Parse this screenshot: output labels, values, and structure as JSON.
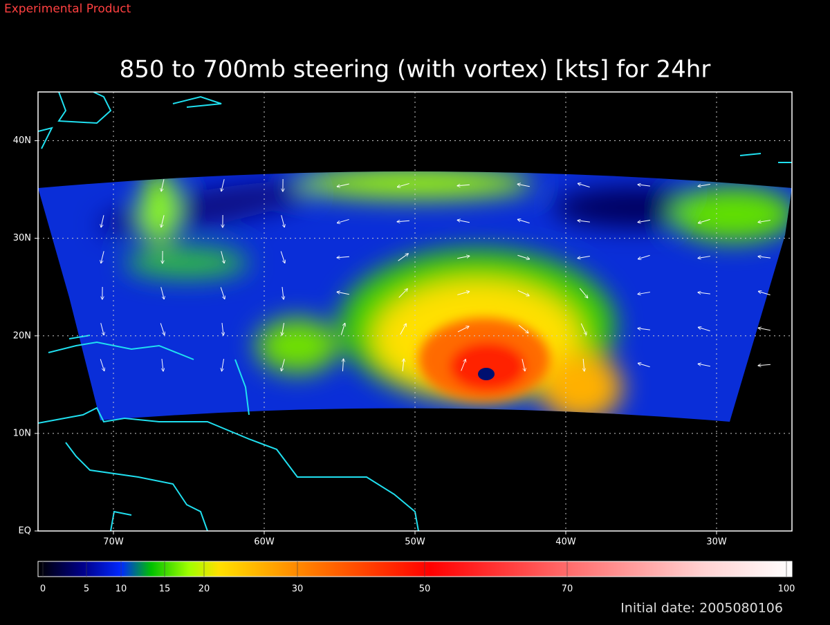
{
  "header": {
    "label": "Experimental Product"
  },
  "map": {
    "title": "850 to 700mb steering (with vortex) [kts] for 24hr",
    "xlim": [
      -75,
      -25
    ],
    "ylim": [
      0,
      45
    ],
    "xticks": [
      {
        "value": -70,
        "label": "70W"
      },
      {
        "value": -60,
        "label": "60W"
      },
      {
        "value": -50,
        "label": "50W"
      },
      {
        "value": -40,
        "label": "40W"
      },
      {
        "value": -30,
        "label": "30W"
      }
    ],
    "yticks": [
      {
        "value": 0,
        "label": "EQ"
      },
      {
        "value": 10,
        "label": "10N"
      },
      {
        "value": 20,
        "label": "20N"
      },
      {
        "value": 30,
        "label": "30N"
      },
      {
        "value": 40,
        "label": "40N"
      }
    ],
    "grid": true
  },
  "colorbar": {
    "ticks": [
      0,
      5,
      10,
      15,
      20,
      30,
      50,
      70,
      100
    ]
  },
  "footer": {
    "initial_date": "Initial date: 2005080106"
  }
}
